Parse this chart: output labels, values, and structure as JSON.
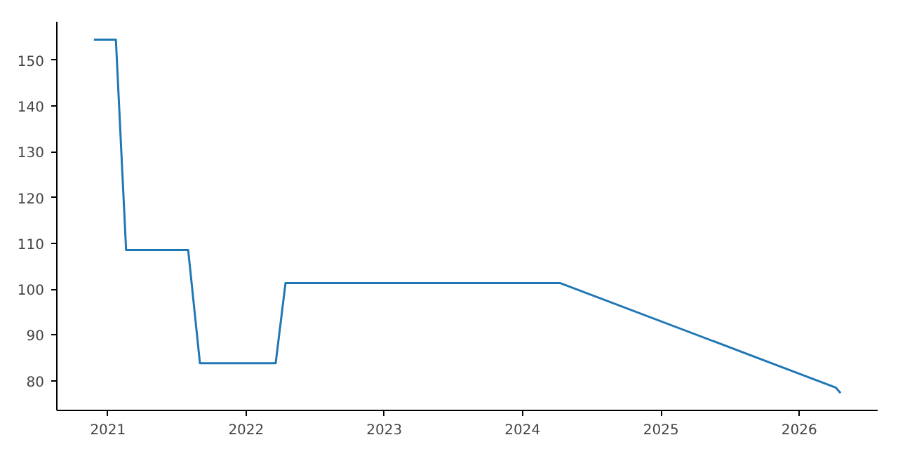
{
  "chart_data": {
    "type": "line",
    "line_style": "solid",
    "x": [
      "2020-11-25",
      "2021-01-22",
      "2021-02-18",
      "2021-08-01",
      "2021-09-01",
      "2022-03-20",
      "2022-04-15",
      "2024-04-10",
      "2026-04-07",
      "2026-04-20"
    ],
    "series": [
      {
        "color": "#1f77b4",
        "values": [
          154.5,
          154.5,
          108.5,
          108.5,
          83.8,
          83.8,
          101.3,
          101.3,
          78.5,
          77.3
        ]
      }
    ],
    "xlim": [
      "2020-08-19",
      "2026-07-27"
    ],
    "xticks": [
      {
        "value": "2021-01-01",
        "label": "2021"
      },
      {
        "value": "2022-01-01",
        "label": "2022"
      },
      {
        "value": "2023-01-01",
        "label": "2023"
      },
      {
        "value": "2024-01-01",
        "label": "2024"
      },
      {
        "value": "2025-01-01",
        "label": "2025"
      },
      {
        "value": "2026-01-01",
        "label": "2026"
      }
    ],
    "ylim": [
      73.5,
      158.4
    ],
    "yticks": [
      80,
      90,
      100,
      110,
      120,
      130,
      140,
      150
    ]
  }
}
